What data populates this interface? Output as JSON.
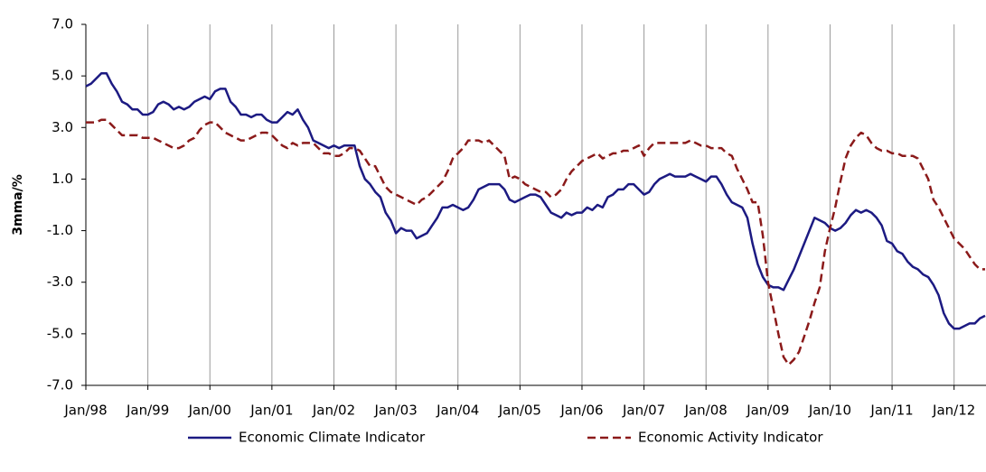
{
  "chart_data": {
    "type": "line",
    "ylabel": "3mma/%",
    "categories": [
      "Jan/98",
      null,
      null,
      null,
      null,
      null,
      null,
      null,
      null,
      null,
      null,
      null,
      "Jan/99",
      null,
      null,
      null,
      null,
      null,
      null,
      null,
      null,
      null,
      null,
      null,
      "Jan/00",
      null,
      null,
      null,
      null,
      null,
      null,
      null,
      null,
      null,
      null,
      null,
      "Jan/01",
      null,
      null,
      null,
      null,
      null,
      null,
      null,
      null,
      null,
      null,
      null,
      "Jan/02",
      null,
      null,
      null,
      null,
      null,
      null,
      null,
      null,
      null,
      null,
      null,
      "Jan/03",
      null,
      null,
      null,
      null,
      null,
      null,
      null,
      null,
      null,
      null,
      null,
      "Jan/04",
      null,
      null,
      null,
      null,
      null,
      null,
      null,
      null,
      null,
      null,
      null,
      "Jan/05",
      null,
      null,
      null,
      null,
      null,
      null,
      null,
      null,
      null,
      null,
      null,
      "Jan/06",
      null,
      null,
      null,
      null,
      null,
      null,
      null,
      null,
      null,
      null,
      null,
      "Jan/07",
      null,
      null,
      null,
      null,
      null,
      null,
      null,
      null,
      null,
      null,
      null,
      "Jan/08",
      null,
      null,
      null,
      null,
      null,
      null,
      null,
      null,
      null,
      null,
      null,
      "Jan/09",
      null,
      null,
      null,
      null,
      null,
      null,
      null,
      null,
      null,
      null,
      null,
      "Jan/10",
      null,
      null,
      null,
      null,
      null,
      null,
      null,
      null,
      null,
      null,
      null,
      "Jan/11",
      null,
      null,
      null,
      null,
      null,
      null,
      null,
      null,
      null,
      null,
      null,
      "Jan/12",
      null,
      null,
      null,
      null,
      null,
      null
    ],
    "series": [
      {
        "name": "Economic Climate Indicator",
        "color": "#1c1a82",
        "dash": false,
        "values": [
          4.6,
          4.7,
          4.9,
          5.1,
          5.1,
          4.7,
          4.4,
          4.0,
          3.9,
          3.7,
          3.7,
          3.5,
          3.5,
          3.6,
          3.9,
          4.0,
          3.9,
          3.7,
          3.8,
          3.7,
          3.8,
          4.0,
          4.1,
          4.2,
          4.1,
          4.4,
          4.5,
          4.5,
          4.0,
          3.8,
          3.5,
          3.5,
          3.4,
          3.5,
          3.5,
          3.3,
          3.2,
          3.2,
          3.4,
          3.6,
          3.5,
          3.7,
          3.3,
          3.0,
          2.5,
          2.4,
          2.3,
          2.2,
          2.3,
          2.2,
          2.3,
          2.3,
          2.3,
          1.5,
          1.0,
          0.8,
          0.5,
          0.3,
          -0.3,
          -0.6,
          -1.1,
          -0.9,
          -1.0,
          -1.0,
          -1.3,
          -1.2,
          -1.1,
          -0.8,
          -0.5,
          -0.1,
          -0.1,
          0.0,
          -0.1,
          -0.2,
          -0.1,
          0.2,
          0.6,
          0.7,
          0.8,
          0.8,
          0.8,
          0.6,
          0.2,
          0.1,
          0.2,
          0.3,
          0.4,
          0.4,
          0.3,
          0.0,
          -0.3,
          -0.4,
          -0.5,
          -0.3,
          -0.4,
          -0.3,
          -0.3,
          -0.1,
          -0.2,
          0.0,
          -0.1,
          0.3,
          0.4,
          0.6,
          0.6,
          0.8,
          0.8,
          0.6,
          0.4,
          0.5,
          0.8,
          1.0,
          1.1,
          1.2,
          1.1,
          1.1,
          1.1,
          1.2,
          1.1,
          1.0,
          0.9,
          1.1,
          1.1,
          0.8,
          0.4,
          0.1,
          0.0,
          -0.1,
          -0.5,
          -1.5,
          -2.3,
          -2.8,
          -3.1,
          -3.2,
          -3.2,
          -3.3,
          -2.9,
          -2.5,
          -2.0,
          -1.5,
          -1.0,
          -0.5,
          -0.6,
          -0.7,
          -0.9,
          -1.0,
          -0.9,
          -0.7,
          -0.4,
          -0.2,
          -0.3,
          -0.2,
          -0.3,
          -0.5,
          -0.8,
          -1.4,
          -1.5,
          -1.8,
          -1.9,
          -2.2,
          -2.4,
          -2.5,
          -2.7,
          -2.8,
          -3.1,
          -3.5,
          -4.2,
          -4.6,
          -4.8,
          -4.8,
          -4.7,
          -4.6,
          -4.6,
          -4.4,
          -4.3
        ]
      },
      {
        "name": "Economic Activity Indicator",
        "color": "#8b1a1a",
        "dash": true,
        "values": [
          3.2,
          3.2,
          3.2,
          3.3,
          3.3,
          3.1,
          2.9,
          2.7,
          2.7,
          2.7,
          2.7,
          2.6,
          2.6,
          2.6,
          2.5,
          2.4,
          2.3,
          2.2,
          2.2,
          2.3,
          2.5,
          2.6,
          2.9,
          3.1,
          3.2,
          3.2,
          3.0,
          2.8,
          2.7,
          2.6,
          2.5,
          2.5,
          2.6,
          2.7,
          2.8,
          2.8,
          2.7,
          2.5,
          2.3,
          2.2,
          2.4,
          2.3,
          2.4,
          2.4,
          2.4,
          2.2,
          2.0,
          2.0,
          1.9,
          1.9,
          2.0,
          2.2,
          2.2,
          2.1,
          1.8,
          1.5,
          1.5,
          1.1,
          0.7,
          0.5,
          0.4,
          0.3,
          0.2,
          0.1,
          0.0,
          0.2,
          0.3,
          0.5,
          0.7,
          0.9,
          1.3,
          1.8,
          2.0,
          2.2,
          2.5,
          2.5,
          2.5,
          2.4,
          2.5,
          2.3,
          2.1,
          1.9,
          1.0,
          1.1,
          1.0,
          0.8,
          0.7,
          0.6,
          0.5,
          0.5,
          0.3,
          0.4,
          0.6,
          1.0,
          1.3,
          1.5,
          1.7,
          1.8,
          1.9,
          2.0,
          1.8,
          1.9,
          2.0,
          2.0,
          2.1,
          2.1,
          2.2,
          2.3,
          1.9,
          2.2,
          2.4,
          2.4,
          2.4,
          2.4,
          2.4,
          2.4,
          2.4,
          2.5,
          2.4,
          2.3,
          2.3,
          2.2,
          2.2,
          2.2,
          2.0,
          1.9,
          1.4,
          1.0,
          0.6,
          0.1,
          0.1,
          -1.2,
          -3.0,
          -4.0,
          -5.0,
          -5.9,
          -6.2,
          -6.0,
          -5.7,
          -5.1,
          -4.5,
          -3.8,
          -3.2,
          -1.8,
          -0.9,
          -0.1,
          0.9,
          1.8,
          2.3,
          2.6,
          2.8,
          2.7,
          2.4,
          2.2,
          2.1,
          2.1,
          2.0,
          2.0,
          1.9,
          1.9,
          1.9,
          1.8,
          1.4,
          1.0,
          0.2,
          -0.1,
          -0.5,
          -0.9,
          -1.3,
          -1.5,
          -1.7,
          -2.0,
          -2.3,
          -2.5,
          -2.5
        ]
      }
    ],
    "ylim": [
      -7,
      7
    ],
    "yticks": [
      {
        "value": 7,
        "label": "7.0"
      },
      {
        "value": 5,
        "label": "5.0"
      },
      {
        "value": 3,
        "label": "3.0"
      },
      {
        "value": 1,
        "label": "1.0"
      },
      {
        "value": -1,
        "label": "-1.0"
      },
      {
        "value": -3,
        "label": "-3.0"
      },
      {
        "value": -5,
        "label": "-5.0"
      },
      {
        "value": -7,
        "label": "-7.0"
      }
    ],
    "grid": true,
    "legend": "bottom"
  }
}
